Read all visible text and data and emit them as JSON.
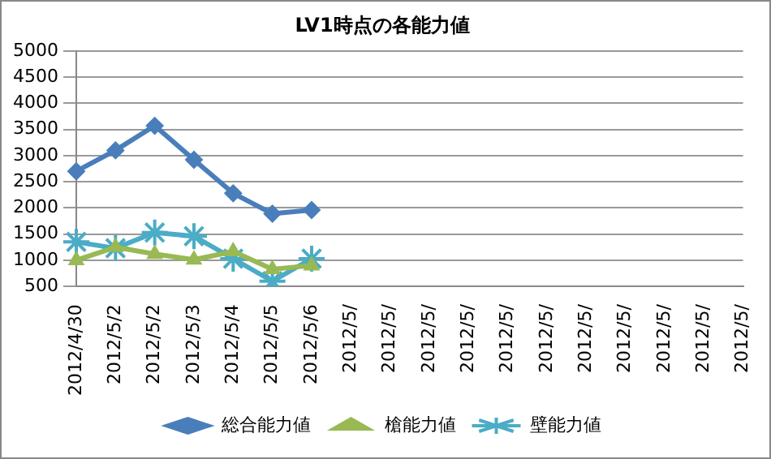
{
  "chart_data": {
    "type": "line",
    "title": "LV1時点の各能力値",
    "categories": [
      "2012/4/30",
      "2012/5/2",
      "2012/5/2",
      "2012/5/3",
      "2012/5/4",
      "2012/5/5",
      "2012/5/6",
      "2012/5/",
      "2012/5/",
      "2012/5/",
      "2012/5/",
      "2012/5/",
      "2012/5/",
      "2012/5/",
      "2012/5/",
      "2012/5/",
      "2012/5/",
      "2012/5/"
    ],
    "series": [
      {
        "name": "総合能力値",
        "color": "#4a7ebb",
        "marker": "diamond",
        "values": [
          2700,
          3100,
          3570,
          2920,
          2280,
          1890,
          1960,
          null,
          null,
          null,
          null,
          null,
          null,
          null,
          null,
          null,
          null,
          null
        ]
      },
      {
        "name": "槍能力値",
        "color": "#98b954",
        "marker": "triangle",
        "values": [
          1000,
          1250,
          1120,
          1010,
          1170,
          830,
          900,
          null,
          null,
          null,
          null,
          null,
          null,
          null,
          null,
          null,
          null,
          null
        ]
      },
      {
        "name": "壁能力値",
        "color": "#4bacc6",
        "marker": "cross",
        "values": [
          1350,
          1230,
          1530,
          1460,
          1030,
          600,
          1030,
          null,
          null,
          null,
          null,
          null,
          null,
          null,
          null,
          null,
          null,
          null
        ]
      }
    ],
    "ylim": [
      500,
      5000
    ],
    "yticks": [
      500,
      1000,
      1500,
      2000,
      2500,
      3000,
      3500,
      4000,
      4500,
      5000
    ],
    "grid": "y",
    "legend": "bottom"
  }
}
